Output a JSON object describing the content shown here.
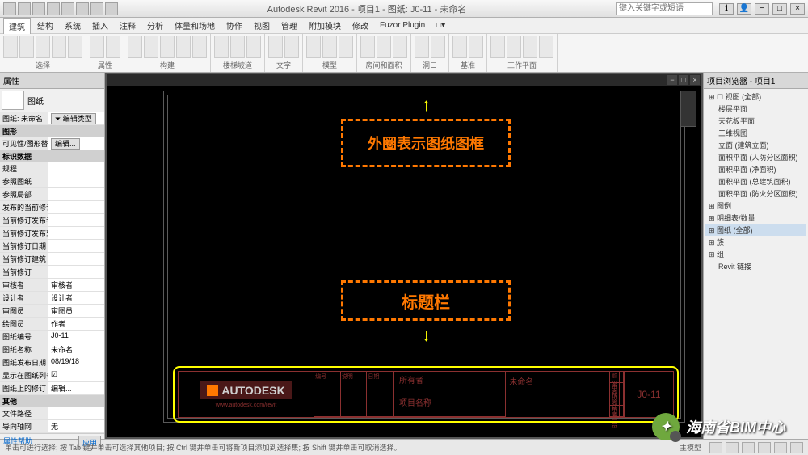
{
  "app": {
    "title": "Autodesk Revit 2016 - 项目1 - 图纸: J0-11 - 未命名",
    "search_placeholder": "键入关键字或短语"
  },
  "menu": {
    "items": [
      "建筑",
      "结构",
      "系统",
      "插入",
      "注释",
      "分析",
      "体量和场地",
      "协作",
      "视图",
      "管理",
      "附加模块",
      "修改",
      "Fuzor Plugin"
    ],
    "tail": "□▾"
  },
  "ribbon_groups": [
    "选择",
    "属性",
    "构建",
    "楼梯坡道",
    "文字",
    "模型",
    "房间和面积",
    "洞口",
    "基准",
    "工作平面"
  ],
  "props": {
    "panel": "属性",
    "type": "图纸",
    "type_row_k": "图纸: 未命名",
    "type_row_btn": "⏷ 编辑类型",
    "sect_vis": "图形",
    "vis_k": "可见性/图形替换",
    "vis_btn": "编辑...",
    "sect_id": "标识数据",
    "rows": [
      {
        "k": "规程",
        "v": ""
      },
      {
        "k": "参照图纸",
        "v": ""
      },
      {
        "k": "参照局部",
        "v": ""
      },
      {
        "k": "发布的当前修订",
        "v": ""
      },
      {
        "k": "当前修订发布者",
        "v": ""
      },
      {
        "k": "当前修订发布到",
        "v": ""
      },
      {
        "k": "当前修订日期",
        "v": ""
      },
      {
        "k": "当前修订建筑",
        "v": ""
      },
      {
        "k": "当前修订",
        "v": ""
      },
      {
        "k": "审核者",
        "v": "审核者"
      },
      {
        "k": "设计者",
        "v": "设计者"
      },
      {
        "k": "审图员",
        "v": "审图员"
      },
      {
        "k": "绘图员",
        "v": "作者"
      },
      {
        "k": "图纸编号",
        "v": "J0-11"
      },
      {
        "k": "图纸名称",
        "v": "未命名"
      },
      {
        "k": "图纸发布日期",
        "v": "08/19/18"
      },
      {
        "k": "显示在图纸列表中",
        "v": "☑"
      },
      {
        "k": "图纸上的修订",
        "v": "编辑..."
      }
    ],
    "sect_other": "其他",
    "others": [
      {
        "k": "文件路径",
        "v": ""
      },
      {
        "k": "导向轴网",
        "v": "无"
      }
    ],
    "help": "属性帮助",
    "apply": "应用"
  },
  "callouts": {
    "c1": "外圈表示图纸图框",
    "c2": "标题栏"
  },
  "titleblock": {
    "logo": "AUTODESK",
    "url": "www.autodesk.com/revit",
    "mid_cols": [
      "编号",
      "说明",
      "日期"
    ],
    "owner_lbl": "所有者",
    "proj_lbl": "项目名称",
    "name": "未命名",
    "grid": [
      [
        "颁发者",
        ""
      ],
      [
        "审核者",
        ""
      ],
      [
        "设计者",
        ""
      ],
      [
        "审图员",
        ""
      ]
    ],
    "num": "J0-11"
  },
  "browser": {
    "title": "项目浏览器 - 项目1",
    "items": [
      {
        "t": "☐ 视图 (全部)",
        "l": 1
      },
      {
        "t": "楼层平面",
        "l": 2
      },
      {
        "t": "天花板平面",
        "l": 2
      },
      {
        "t": "三维视图",
        "l": 2
      },
      {
        "t": "立面 (建筑立面)",
        "l": 2
      },
      {
        "t": "面积平面 (人防分区面积)",
        "l": 2
      },
      {
        "t": "面积平面 (净面积)",
        "l": 2
      },
      {
        "t": "面积平面 (总建筑面积)",
        "l": 2
      },
      {
        "t": "面积平面 (防火分区面积)",
        "l": 2
      },
      {
        "t": "图例",
        "l": 1
      },
      {
        "t": "明细表/数量",
        "l": 1
      },
      {
        "t": "图纸 (全部)",
        "l": 1,
        "sel": true
      },
      {
        "t": "族",
        "l": 1
      },
      {
        "t": "组",
        "l": 1
      },
      {
        "t": "Revit 链接",
        "l": 2
      }
    ]
  },
  "status": {
    "left": "单击可进行选择; 按 Tab 键并单击可选择其他项目; 按 Ctrl 键并单击可将新项目添加到选择集; 按 Shift 键并单击可取消选择。",
    "mid": "主模型"
  },
  "watermark": "海南省BIM中心"
}
